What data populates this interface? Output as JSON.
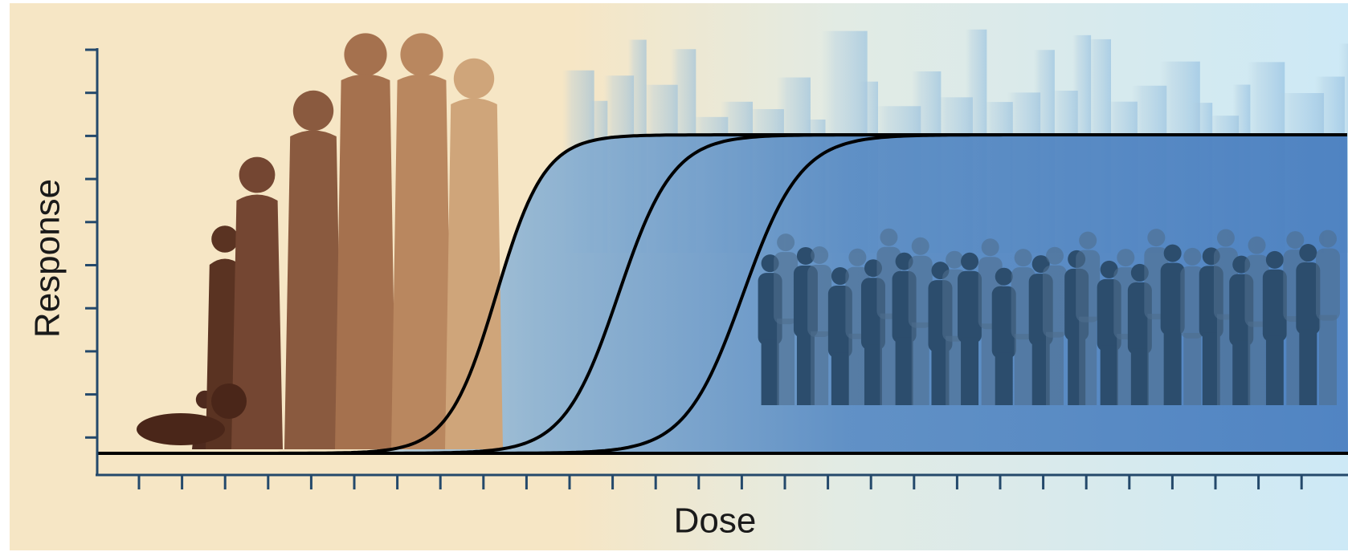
{
  "axes": {
    "y_label": "Response",
    "x_label": "Dose"
  }
}
